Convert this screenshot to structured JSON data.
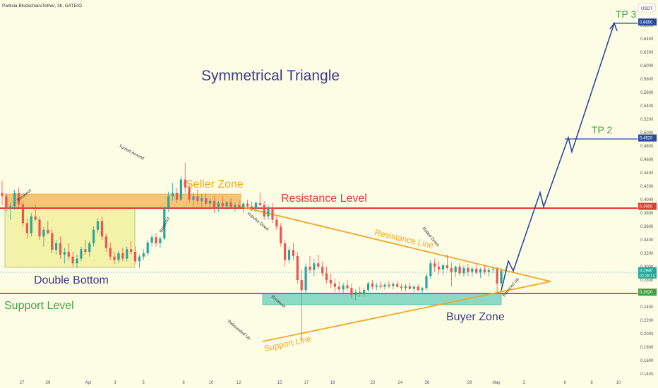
{
  "pair_title": "Partisia Blockchain/Tether, 3h, GATEIO",
  "currency_badge": "USDT",
  "colors": {
    "background": "#fdfde6",
    "candle_up": "#26a69a",
    "candle_down": "#ef5350",
    "resistance": "#e53935",
    "support": "#43a047",
    "triangle": "#f5a623",
    "projection": "#2b4a9c",
    "seller_zone": "#f3b75a",
    "buyer_zone": "#7fd6c0",
    "double_bottom_box": "#f2f2a8",
    "title_text": "#3a3a8c"
  },
  "annotations": {
    "main_title": "Symmetrical Triangle",
    "seller_zone": "Seller Zone",
    "resistance_level": "Resistance Level",
    "double_bottom": "Double Bottom",
    "support_level": "Support Level",
    "buyer_zone": "Buyer Zone",
    "resistance_line": "Resistance Line",
    "support_line": "Support Line",
    "tp1": "TP 2",
    "tp3": "TP 3",
    "turned_around": "Turned Around",
    "breakout_left": "Breakout",
    "breakout_mid": "Breakout",
    "impulse_down": "Impulse Down",
    "breakout_low": "Breakout",
    "rebounded_up": "Rebounded Up",
    "rolled_down": "Rolled Down",
    "bounced_up": "Bounced Up"
  },
  "chart_data": {
    "type": "candlestick",
    "x_tick_labels": [
      "27",
      "29",
      "Apr",
      "3",
      "5",
      "8",
      "10",
      "12",
      "15",
      "17",
      "19",
      "22",
      "24",
      "26",
      "29",
      "May",
      "3",
      "6",
      "8",
      "10"
    ],
    "y_tick_labels": [
      "0.6600",
      "0.6400",
      "0.6200",
      "0.6000",
      "0.5800",
      "0.5600",
      "0.5400",
      "0.5200",
      "0.5000",
      "0.4800",
      "0.4600",
      "0.4400",
      "0.4200",
      "0.4000",
      "0.3800",
      "0.3600",
      "0.3400",
      "0.3200",
      "0.3000",
      "0.2800",
      "0.2600",
      "0.2400",
      "0.2200",
      "0.2000",
      "0.1800",
      "0.1600",
      "0.1400"
    ],
    "ylim": [
      0.14,
      0.68
    ],
    "price_tags": [
      {
        "value": 0.665,
        "label": "0.6650",
        "color": "#2b4a9c"
      },
      {
        "value": 0.492,
        "label": "0.4920",
        "color": "#2b4a9c"
      },
      {
        "value": 0.39,
        "label": "0.3900",
        "color": "#e53935"
      },
      {
        "value": 0.294,
        "label": "0.2940",
        "color": "#26a69a"
      },
      {
        "value": 0.262,
        "label": "0.2620",
        "color": "#43a047"
      }
    ],
    "current_timer": "02:28:14",
    "levels": {
      "resistance": 0.39,
      "support": 0.262,
      "tp2": 0.492,
      "tp3": 0.665
    },
    "zones": {
      "seller_zone": {
        "low": 0.39,
        "high": 0.411
      },
      "buyer_zone": {
        "low": 0.245,
        "high": 0.262
      },
      "double_bottom_box": {
        "low": 0.298,
        "high": 0.39
      }
    },
    "projection_path": [
      {
        "x": "May 1",
        "y": 0.294
      },
      {
        "x": "May 2",
        "y": 0.324
      },
      {
        "x": "May 2",
        "y": 0.31
      },
      {
        "x": "May 3",
        "y": 0.41
      },
      {
        "x": "May 4",
        "y": 0.393
      },
      {
        "x": "May 5",
        "y": 0.495
      },
      {
        "x": "May 6",
        "y": 0.473
      },
      {
        "x": "May 8",
        "y": 0.665
      }
    ],
    "candles": [
      [
        0.41,
        0.428,
        0.392,
        0.405
      ],
      [
        0.405,
        0.41,
        0.382,
        0.386
      ],
      [
        0.386,
        0.395,
        0.37,
        0.39
      ],
      [
        0.39,
        0.415,
        0.385,
        0.41
      ],
      [
        0.41,
        0.418,
        0.388,
        0.393
      ],
      [
        0.393,
        0.398,
        0.36,
        0.365
      ],
      [
        0.365,
        0.372,
        0.342,
        0.35
      ],
      [
        0.35,
        0.38,
        0.345,
        0.375
      ],
      [
        0.375,
        0.392,
        0.368,
        0.37
      ],
      [
        0.37,
        0.375,
        0.34,
        0.345
      ],
      [
        0.345,
        0.36,
        0.33,
        0.355
      ],
      [
        0.355,
        0.368,
        0.348,
        0.35
      ],
      [
        0.35,
        0.356,
        0.32,
        0.325
      ],
      [
        0.325,
        0.34,
        0.318,
        0.335
      ],
      [
        0.335,
        0.345,
        0.312,
        0.318
      ],
      [
        0.318,
        0.328,
        0.305,
        0.322
      ],
      [
        0.322,
        0.335,
        0.31,
        0.315
      ],
      [
        0.315,
        0.322,
        0.3,
        0.305
      ],
      [
        0.305,
        0.318,
        0.298,
        0.312
      ],
      [
        0.312,
        0.33,
        0.308,
        0.326
      ],
      [
        0.326,
        0.34,
        0.318,
        0.322
      ],
      [
        0.322,
        0.338,
        0.315,
        0.335
      ],
      [
        0.335,
        0.36,
        0.33,
        0.355
      ],
      [
        0.355,
        0.372,
        0.35,
        0.368
      ],
      [
        0.368,
        0.375,
        0.34,
        0.345
      ],
      [
        0.345,
        0.35,
        0.322,
        0.328
      ],
      [
        0.328,
        0.336,
        0.31,
        0.315
      ],
      [
        0.315,
        0.322,
        0.304,
        0.31
      ],
      [
        0.31,
        0.324,
        0.305,
        0.32
      ],
      [
        0.32,
        0.328,
        0.308,
        0.312
      ],
      [
        0.312,
        0.33,
        0.308,
        0.326
      ],
      [
        0.326,
        0.338,
        0.318,
        0.322
      ],
      [
        0.322,
        0.33,
        0.305,
        0.308
      ],
      [
        0.308,
        0.318,
        0.298,
        0.315
      ],
      [
        0.315,
        0.326,
        0.31,
        0.32
      ],
      [
        0.32,
        0.34,
        0.316,
        0.336
      ],
      [
        0.336,
        0.348,
        0.33,
        0.344
      ],
      [
        0.344,
        0.35,
        0.33,
        0.335
      ],
      [
        0.335,
        0.345,
        0.328,
        0.342
      ],
      [
        0.342,
        0.39,
        0.34,
        0.388
      ],
      [
        0.388,
        0.412,
        0.382,
        0.405
      ],
      [
        0.405,
        0.425,
        0.398,
        0.41
      ],
      [
        0.41,
        0.418,
        0.395,
        0.4
      ],
      [
        0.4,
        0.435,
        0.398,
        0.43
      ],
      [
        0.43,
        0.455,
        0.41,
        0.418
      ],
      [
        0.418,
        0.425,
        0.395,
        0.4
      ],
      [
        0.4,
        0.41,
        0.39,
        0.405
      ],
      [
        0.405,
        0.415,
        0.392,
        0.398
      ],
      [
        0.398,
        0.408,
        0.388,
        0.402
      ],
      [
        0.402,
        0.41,
        0.39,
        0.394
      ],
      [
        0.394,
        0.402,
        0.385,
        0.398
      ],
      [
        0.398,
        0.405,
        0.38,
        0.386
      ],
      [
        0.386,
        0.398,
        0.382,
        0.395
      ],
      [
        0.395,
        0.405,
        0.388,
        0.39
      ],
      [
        0.39,
        0.398,
        0.385,
        0.396
      ],
      [
        0.396,
        0.402,
        0.386,
        0.389
      ],
      [
        0.389,
        0.396,
        0.382,
        0.392
      ],
      [
        0.392,
        0.4,
        0.386,
        0.388
      ],
      [
        0.388,
        0.396,
        0.38,
        0.394
      ],
      [
        0.394,
        0.4,
        0.386,
        0.39
      ],
      [
        0.39,
        0.397,
        0.383,
        0.386
      ],
      [
        0.386,
        0.398,
        0.382,
        0.395
      ],
      [
        0.395,
        0.41,
        0.39,
        0.392
      ],
      [
        0.392,
        0.398,
        0.37,
        0.375
      ],
      [
        0.375,
        0.392,
        0.37,
        0.388
      ],
      [
        0.388,
        0.395,
        0.365,
        0.37
      ],
      [
        0.37,
        0.375,
        0.355,
        0.36
      ],
      [
        0.36,
        0.365,
        0.33,
        0.335
      ],
      [
        0.335,
        0.34,
        0.3,
        0.31
      ],
      [
        0.31,
        0.33,
        0.305,
        0.325
      ],
      [
        0.325,
        0.335,
        0.31,
        0.316
      ],
      [
        0.316,
        0.322,
        0.275,
        0.28
      ],
      [
        0.28,
        0.295,
        0.19,
        0.265
      ],
      [
        0.265,
        0.305,
        0.26,
        0.3
      ],
      [
        0.3,
        0.316,
        0.29,
        0.295
      ],
      [
        0.295,
        0.312,
        0.286,
        0.305
      ],
      [
        0.305,
        0.318,
        0.296,
        0.3
      ],
      [
        0.3,
        0.308,
        0.285,
        0.29
      ],
      [
        0.29,
        0.3,
        0.275,
        0.28
      ],
      [
        0.28,
        0.29,
        0.268,
        0.275
      ],
      [
        0.275,
        0.282,
        0.262,
        0.27
      ],
      [
        0.27,
        0.278,
        0.262,
        0.266
      ],
      [
        0.266,
        0.276,
        0.26,
        0.272
      ],
      [
        0.272,
        0.28,
        0.264,
        0.268
      ],
      [
        0.268,
        0.274,
        0.252,
        0.258
      ],
      [
        0.258,
        0.266,
        0.25,
        0.262
      ],
      [
        0.262,
        0.27,
        0.255,
        0.26
      ],
      [
        0.26,
        0.268,
        0.255,
        0.265
      ],
      [
        0.265,
        0.278,
        0.262,
        0.275
      ],
      [
        0.275,
        0.28,
        0.266,
        0.27
      ],
      [
        0.27,
        0.276,
        0.265,
        0.272
      ],
      [
        0.272,
        0.278,
        0.267,
        0.27
      ],
      [
        0.27,
        0.276,
        0.266,
        0.273
      ],
      [
        0.273,
        0.278,
        0.268,
        0.271
      ],
      [
        0.271,
        0.277,
        0.266,
        0.274
      ],
      [
        0.274,
        0.279,
        0.268,
        0.27
      ],
      [
        0.27,
        0.275,
        0.264,
        0.268
      ],
      [
        0.268,
        0.274,
        0.263,
        0.271
      ],
      [
        0.271,
        0.276,
        0.265,
        0.267
      ],
      [
        0.267,
        0.273,
        0.262,
        0.27
      ],
      [
        0.27,
        0.274,
        0.263,
        0.265
      ],
      [
        0.265,
        0.27,
        0.26,
        0.268
      ],
      [
        0.268,
        0.29,
        0.265,
        0.286
      ],
      [
        0.286,
        0.31,
        0.282,
        0.305
      ],
      [
        0.305,
        0.312,
        0.292,
        0.3
      ],
      [
        0.3,
        0.308,
        0.288,
        0.296
      ],
      [
        0.296,
        0.305,
        0.287,
        0.302
      ],
      [
        0.302,
        0.318,
        0.295,
        0.298
      ],
      [
        0.298,
        0.306,
        0.27,
        0.292
      ],
      [
        0.292,
        0.302,
        0.285,
        0.3
      ],
      [
        0.3,
        0.306,
        0.287,
        0.29
      ],
      [
        0.29,
        0.302,
        0.285,
        0.298
      ],
      [
        0.298,
        0.304,
        0.286,
        0.292
      ],
      [
        0.292,
        0.3,
        0.285,
        0.297
      ],
      [
        0.297,
        0.303,
        0.288,
        0.291
      ],
      [
        0.291,
        0.298,
        0.283,
        0.296
      ],
      [
        0.296,
        0.302,
        0.288,
        0.292
      ],
      [
        0.292,
        0.298,
        0.285,
        0.295
      ],
      [
        0.295,
        0.3,
        0.29,
        0.296
      ],
      [
        0.296,
        0.3,
        0.262,
        0.275
      ],
      [
        0.275,
        0.298,
        0.27,
        0.294
      ]
    ]
  }
}
